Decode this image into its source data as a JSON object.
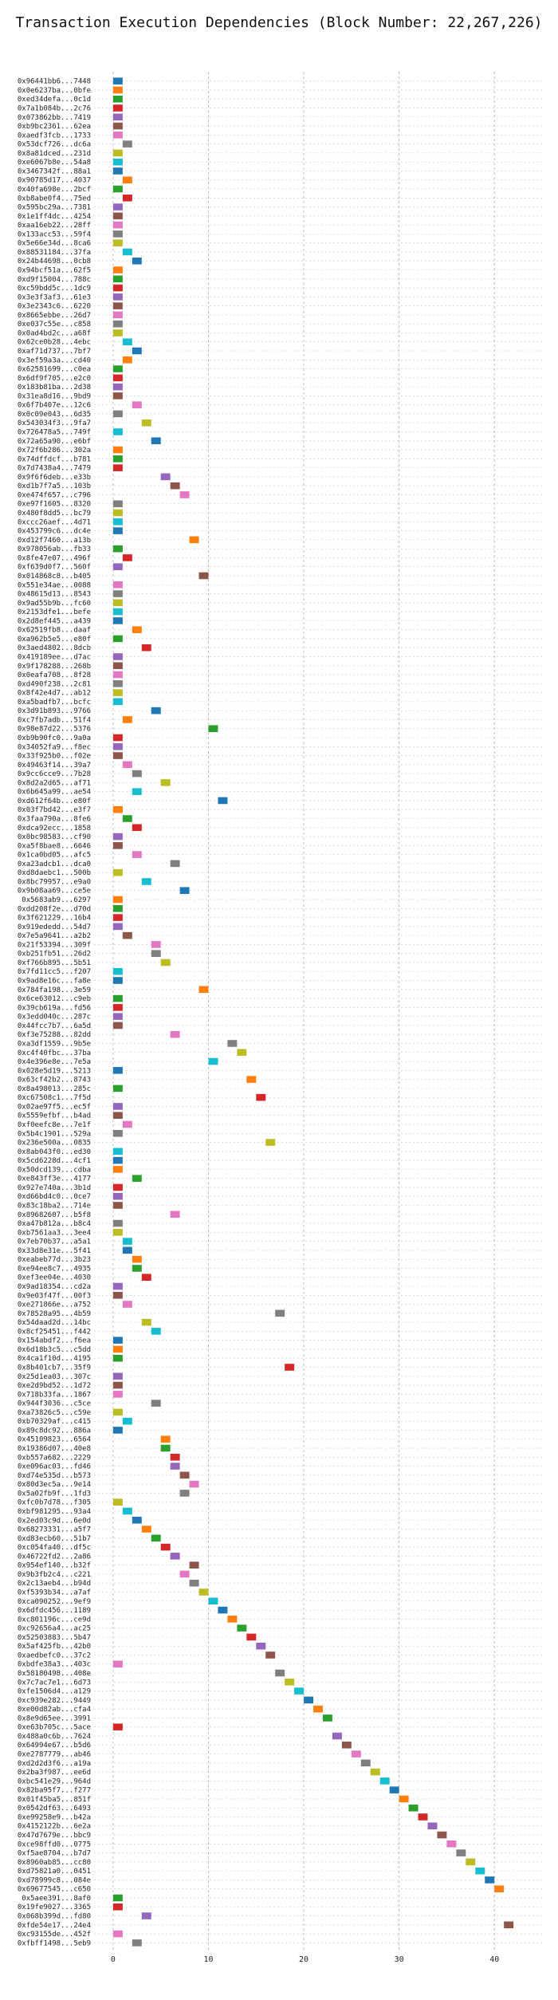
{
  "chart_data": {
    "type": "bar",
    "title": "Transaction Execution Dependencies (Block Number: 22,267,226)",
    "xlabel": "",
    "ylabel": "",
    "xlim": [
      -2,
      45
    ],
    "xticks": [
      0,
      10,
      20,
      30,
      40
    ],
    "grid": true,
    "palette": [
      "#1f77b4",
      "#ff7f0e",
      "#2ca02c",
      "#d62728",
      "#9467bd",
      "#8c564b",
      "#e377c2",
      "#7f7f7f",
      "#bcbd22",
      "#17becf"
    ],
    "transactions": [
      {
        "label": "0x96441bb6...7448",
        "start": 0
      },
      {
        "label": "0x0e6237ba...0bfe",
        "start": 0
      },
      {
        "label": "0xed34defa...0c1d",
        "start": 0
      },
      {
        "label": "0x7a1b084b...2c76",
        "start": 0
      },
      {
        "label": "0x073862bb...7419",
        "start": 0
      },
      {
        "label": "0xb9bc2361...62ea",
        "start": 0
      },
      {
        "label": "0xaedf3fcb...1733",
        "start": 0
      },
      {
        "label": "0x53dcf726...dc6a",
        "start": 1
      },
      {
        "label": "0x8a81dced...231d",
        "start": 0
      },
      {
        "label": "0xe6067b8e...54a8",
        "start": 0
      },
      {
        "label": "0x3467342f...88a1",
        "start": 0
      },
      {
        "label": "0x90785d17...4037",
        "start": 1
      },
      {
        "label": "0x40fa698e...2bcf",
        "start": 0
      },
      {
        "label": "0xb8abe0f4...75ed",
        "start": 1
      },
      {
        "label": "0x595bc29a...7381",
        "start": 0
      },
      {
        "label": "0x1e1ff4dc...4254",
        "start": 0
      },
      {
        "label": "0xaa16eb22...28ff",
        "start": 0
      },
      {
        "label": "0x133acc53...59f4",
        "start": 0
      },
      {
        "label": "0x5e66e34d...8ca6",
        "start": 0
      },
      {
        "label": "0x88531184...37fa",
        "start": 1
      },
      {
        "label": "0x24b44698...0cb8",
        "start": 2
      },
      {
        "label": "0x94bcf51a...62f5",
        "start": 0
      },
      {
        "label": "0xd9f15004...788c",
        "start": 0
      },
      {
        "label": "0xc59bdd5c...1dc9",
        "start": 0
      },
      {
        "label": "0x3e3f3af3...61e3",
        "start": 0
      },
      {
        "label": "0x3e2343c6...6220",
        "start": 0
      },
      {
        "label": "0x8665ebbe...26d7",
        "start": 0
      },
      {
        "label": "0xe037c55e...c858",
        "start": 0
      },
      {
        "label": "0x0ad4bd2c...a68f",
        "start": 0
      },
      {
        "label": "0x62ce0b28...4ebc",
        "start": 1
      },
      {
        "label": "0xaf71d737...7bf7",
        "start": 2
      },
      {
        "label": "0x3ef59a3a...cd40",
        "start": 1
      },
      {
        "label": "0x62581699...c0ea",
        "start": 0
      },
      {
        "label": "0x6df9f705...e2c0",
        "start": 0
      },
      {
        "label": "0x183b81ba...2d38",
        "start": 0
      },
      {
        "label": "0x31ea8d16...9bd9",
        "start": 0
      },
      {
        "label": "0x6f7b407e...12c6",
        "start": 2
      },
      {
        "label": "0x0c09e043...6d35",
        "start": 0
      },
      {
        "label": "0x543034f3...9fa7",
        "start": 3
      },
      {
        "label": "0x726478a5...749f",
        "start": 0
      },
      {
        "label": "0x72a65a90...e6bf",
        "start": 4
      },
      {
        "label": "0x72f6b286...302a",
        "start": 0
      },
      {
        "label": "0x74dffdcf...b781",
        "start": 0
      },
      {
        "label": "0x7d7438a4...7479",
        "start": 0
      },
      {
        "label": "0x9f6f6deb...e33b",
        "start": 5
      },
      {
        "label": "0xd1b7f7a5...103b",
        "start": 6
      },
      {
        "label": "0xe474f657...c796",
        "start": 7
      },
      {
        "label": "0xe97f1605...8320",
        "start": 0
      },
      {
        "label": "0x480f8dd5...bc79",
        "start": 0
      },
      {
        "label": "0xccc26aef...4d71",
        "start": 0
      },
      {
        "label": "0x453799c6...dc4e",
        "start": 0
      },
      {
        "label": "0xd12f7460...a13b",
        "start": 8
      },
      {
        "label": "0x978056ab...fb33",
        "start": 0
      },
      {
        "label": "0x8fe47e07...496f",
        "start": 1
      },
      {
        "label": "0xf639d0f7...560f",
        "start": 0
      },
      {
        "label": "0x014868c8...b405",
        "start": 9
      },
      {
        "label": "0x551e34ae...0088",
        "start": 0
      },
      {
        "label": "0x48615d13...8543",
        "start": 0
      },
      {
        "label": "0x9ad55b9b...fc60",
        "start": 0
      },
      {
        "label": "0x2153dfe1...befe",
        "start": 0
      },
      {
        "label": "0x2d8ef445...a439",
        "start": 0
      },
      {
        "label": "0x62519fb8...daaf",
        "start": 2
      },
      {
        "label": "0xa962b5e5...e80f",
        "start": 0
      },
      {
        "label": "0x3aed4802...8dcb",
        "start": 3
      },
      {
        "label": "0x419189ee...d7ac",
        "start": 0
      },
      {
        "label": "0x9f178288...268b",
        "start": 0
      },
      {
        "label": "0x0eafa708...8f28",
        "start": 0
      },
      {
        "label": "0xd490f238...2c81",
        "start": 0
      },
      {
        "label": "0x8f42e4d7...ab12",
        "start": 0
      },
      {
        "label": "0xa5badfb7...bcfc",
        "start": 0
      },
      {
        "label": "0x3d91b893...9766",
        "start": 4
      },
      {
        "label": "0xc7fb7adb...51f4",
        "start": 1
      },
      {
        "label": "0x98e87d22...5376",
        "start": 10
      },
      {
        "label": "0xb9b90fc0...9a0a",
        "start": 0
      },
      {
        "label": "0x34052fa9...f8ec",
        "start": 0
      },
      {
        "label": "0x33f925b0...f02e",
        "start": 0
      },
      {
        "label": "0x49463f14...39a7",
        "start": 1
      },
      {
        "label": "0x9cc6cce9...7b28",
        "start": 2
      },
      {
        "label": "0x8d2a2d65...af71",
        "start": 5
      },
      {
        "label": "0x6b645a99...ae54",
        "start": 2
      },
      {
        "label": "0xd612f64b...e80f",
        "start": 11
      },
      {
        "label": "0x03f7bd42...e3f7",
        "start": 0
      },
      {
        "label": "0x3faa790a...8fe6",
        "start": 1
      },
      {
        "label": "0xdca92ecc...1858",
        "start": 2
      },
      {
        "label": "0x0bc98583...cf90",
        "start": 0
      },
      {
        "label": "0xa5f8bae8...6646",
        "start": 0
      },
      {
        "label": "0x1ca0bd05...afc5",
        "start": 2
      },
      {
        "label": "0xa23adcb1...dca0",
        "start": 6
      },
      {
        "label": "0xd8daebc1...500b",
        "start": 0
      },
      {
        "label": "0x8bc79957...e9a0",
        "start": 3
      },
      {
        "label": "0x9b08aa69...ce5e",
        "start": 7
      },
      {
        "label": "0x5683ab9...6297",
        "start": 0
      },
      {
        "label": "0xdd208f2e...d70d",
        "start": 0
      },
      {
        "label": "0x3f621229...16b4",
        "start": 0
      },
      {
        "label": "0x919ededd...54d7",
        "start": 0
      },
      {
        "label": "0x7e5a9641...a2b2",
        "start": 1
      },
      {
        "label": "0x21f53394...309f",
        "start": 4
      },
      {
        "label": "0xb251fb51...26d2",
        "start": 4
      },
      {
        "label": "0xf766b895...5b51",
        "start": 5
      },
      {
        "label": "0x7fd11cc5...f207",
        "start": 0
      },
      {
        "label": "0x9ad8e16c...fa8e",
        "start": 0
      },
      {
        "label": "0x784fa198...3e59",
        "start": 9
      },
      {
        "label": "0x6ce63012...c9eb",
        "start": 0
      },
      {
        "label": "0x39cb619a...fd56",
        "start": 0
      },
      {
        "label": "0x3edd040c...287c",
        "start": 0
      },
      {
        "label": "0x44fcc7b7...6a5d",
        "start": 0
      },
      {
        "label": "0xf3e75288...82dd",
        "start": 6
      },
      {
        "label": "0xa3df1559...9b5e",
        "start": 12
      },
      {
        "label": "0xc4f40fbc...37ba",
        "start": 13
      },
      {
        "label": "0x4e396e8e...7e5a",
        "start": 10
      },
      {
        "label": "0x028e5d19...5213",
        "start": 0
      },
      {
        "label": "0x63cf42b2...8743",
        "start": 14
      },
      {
        "label": "0x8a498013...285c",
        "start": 0
      },
      {
        "label": "0xc67508c1...7f5d",
        "start": 15
      },
      {
        "label": "0x02ae97f5...ec5f",
        "start": 0
      },
      {
        "label": "0x5559efbf...b4ad",
        "start": 0
      },
      {
        "label": "0xf0eefc8e...7e1f",
        "start": 1
      },
      {
        "label": "0x5b4c1901...529a",
        "start": 0
      },
      {
        "label": "0x236e500a...0835",
        "start": 16
      },
      {
        "label": "0x8ab043f0...ed30",
        "start": 0
      },
      {
        "label": "0x5cd6228d...4cf1",
        "start": 0
      },
      {
        "label": "0x50dcd139...cdba",
        "start": 0
      },
      {
        "label": "0xe843ff3e...4177",
        "start": 2
      },
      {
        "label": "0x927e740a...3b1d",
        "start": 0
      },
      {
        "label": "0xd66bd4c0...0ce7",
        "start": 0
      },
      {
        "label": "0x83c18ba2...714e",
        "start": 0
      },
      {
        "label": "0x89682607...b5f8",
        "start": 6
      },
      {
        "label": "0xa47b812a...b8c4",
        "start": 0
      },
      {
        "label": "0xb7561aa3...3ee4",
        "start": 0
      },
      {
        "label": "0x7eb70b37...a5a1",
        "start": 1
      },
      {
        "label": "0x33d8e31e...5f41",
        "start": 1
      },
      {
        "label": "0xeabeb77d...3b23",
        "start": 2
      },
      {
        "label": "0xe94ee8c7...4935",
        "start": 2
      },
      {
        "label": "0xef3ee04e...4030",
        "start": 3
      },
      {
        "label": "0x9ad18354...cd2a",
        "start": 0
      },
      {
        "label": "0x9e03f47f...00f3",
        "start": 0
      },
      {
        "label": "0xe271866e...a752",
        "start": 1
      },
      {
        "label": "0x78528a95...4b59",
        "start": 17
      },
      {
        "label": "0x54daad2d...14bc",
        "start": 3
      },
      {
        "label": "0x8cf25451...f442",
        "start": 4
      },
      {
        "label": "0x154abdf2...f6ea",
        "start": 0
      },
      {
        "label": "0x6d18b3c5...c5dd",
        "start": 0
      },
      {
        "label": "0x4ca1f10d...4195",
        "start": 0
      },
      {
        "label": "0x8b401cb7...35f9",
        "start": 18
      },
      {
        "label": "0x25d1ea03...307c",
        "start": 0
      },
      {
        "label": "0xe2d9bd52...1d72",
        "start": 0
      },
      {
        "label": "0x718b33fa...1867",
        "start": 0
      },
      {
        "label": "0x944f3036...c5ce",
        "start": 4
      },
      {
        "label": "0xa73826c5...c59e",
        "start": 0
      },
      {
        "label": "0xb70329af...c415",
        "start": 1
      },
      {
        "label": "0x89c8dc92...886a",
        "start": 0
      },
      {
        "label": "0x45109823...6564",
        "start": 5
      },
      {
        "label": "0x19386d07...40e8",
        "start": 5
      },
      {
        "label": "0xb557a682...2229",
        "start": 6
      },
      {
        "label": "0xe096ac03...fd46",
        "start": 6
      },
      {
        "label": "0xd74e535d...b573",
        "start": 7
      },
      {
        "label": "0x80d3ec5a...9e14",
        "start": 8
      },
      {
        "label": "0x5a02fb9f...1fd3",
        "start": 7
      },
      {
        "label": "0xfc0b7d78...f305",
        "start": 0
      },
      {
        "label": "0xbf981295...93a4",
        "start": 1
      },
      {
        "label": "0x2ed03c9d...6e0d",
        "start": 2
      },
      {
        "label": "0x68273331...a5f7",
        "start": 3
      },
      {
        "label": "0xd83ecb60...51b7",
        "start": 4
      },
      {
        "label": "0xc054fa40...df5c",
        "start": 5
      },
      {
        "label": "0x46722fd2...2a86",
        "start": 6
      },
      {
        "label": "0x954ef140...b32f",
        "start": 8
      },
      {
        "label": "0x9b3fb2c4...c221",
        "start": 7
      },
      {
        "label": "0x2c13aeb4...b94d",
        "start": 8
      },
      {
        "label": "0xf5393b34...a7af",
        "start": 9
      },
      {
        "label": "0xca090252...9ef9",
        "start": 10
      },
      {
        "label": "0x6dfdc456...1189",
        "start": 11
      },
      {
        "label": "0xc801196c...ce9d",
        "start": 12
      },
      {
        "label": "0xc92656a4...ac25",
        "start": 13
      },
      {
        "label": "0x52503883...5b47",
        "start": 14
      },
      {
        "label": "0x5af425fb...42b0",
        "start": 15
      },
      {
        "label": "0xaedbefc0...37c2",
        "start": 16
      },
      {
        "label": "0xbdfe38a3...403c",
        "start": 0
      },
      {
        "label": "0x58180498...408e",
        "start": 17
      },
      {
        "label": "0x7c7ac7e1...6d73",
        "start": 18
      },
      {
        "label": "0xfe1506d4...a129",
        "start": 19
      },
      {
        "label": "0xc939e282...9449",
        "start": 20
      },
      {
        "label": "0xe00d82ab...cfa4",
        "start": 21
      },
      {
        "label": "0x8e9d65ee...3991",
        "start": 22
      },
      {
        "label": "0xe63b705c...5ace",
        "start": 0
      },
      {
        "label": "0x488a0c6b...7624",
        "start": 23
      },
      {
        "label": "0x64994e67...b5d6",
        "start": 24
      },
      {
        "label": "0xe2787779...ab46",
        "start": 25
      },
      {
        "label": "0xd2d2d3f6...a19a",
        "start": 26
      },
      {
        "label": "0x2ba3f987...ee6d",
        "start": 27
      },
      {
        "label": "0xbc541e29...964d",
        "start": 28
      },
      {
        "label": "0x82ba95f7...f277",
        "start": 29
      },
      {
        "label": "0x01f45ba5...851f",
        "start": 30
      },
      {
        "label": "0x0542df63...6493",
        "start": 31
      },
      {
        "label": "0xe99258e9...b42a",
        "start": 32
      },
      {
        "label": "0x4152122b...6e2a",
        "start": 33
      },
      {
        "label": "0x47d7679e...bbc9",
        "start": 34
      },
      {
        "label": "0xce98ffd0...0775",
        "start": 35
      },
      {
        "label": "0xf5ae8704...b7d7",
        "start": 36
      },
      {
        "label": "0x8960ab85...cc80",
        "start": 37
      },
      {
        "label": "0xd75821a0...0451",
        "start": 38
      },
      {
        "label": "0xd78999c8...084e",
        "start": 39
      },
      {
        "label": "0x69677545...c650",
        "start": 40
      },
      {
        "label": "0x5aee391...8af0",
        "start": 0
      },
      {
        "label": "0x19fe9027...3365",
        "start": 0
      },
      {
        "label": "0x068b399d...fd80",
        "start": 3
      },
      {
        "label": "0xfde54e17...24e4",
        "start": 41
      },
      {
        "label": "0xc93155de...452f",
        "start": 0
      },
      {
        "label": "0xfbff1498...5eb9",
        "start": 2
      }
    ]
  }
}
